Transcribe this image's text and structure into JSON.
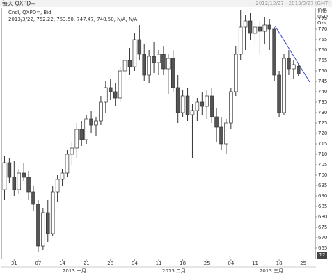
{
  "chart_data": {
    "type": "candlestick",
    "title": "每天 QXPD=",
    "subtitle": "2012/12/27 - 2013/3/27 (GMT)",
    "legend_lines": [
      "Cndl, QXPD=, Bid",
      "2013/3/22, 752.22, 753.50, 747.47, 748.50, N/A, N/A"
    ],
    "y_axis_labels": [
      "价格",
      "USD",
      "Ozs"
    ],
    "corner_label": "12",
    "categories": [
      null,
      null,
      "31",
      null,
      null,
      null,
      null,
      "07",
      null,
      null,
      null,
      null,
      "14",
      null,
      null,
      null,
      null,
      "21",
      null,
      null,
      null,
      null,
      "28",
      null,
      null,
      null,
      null,
      "04",
      null,
      null,
      null,
      null,
      "11",
      null,
      null,
      null,
      null,
      "18",
      null,
      null,
      null,
      null,
      "25",
      null,
      null,
      null,
      null,
      "04",
      null,
      null,
      null,
      null,
      "11",
      null,
      null,
      null,
      null,
      "18",
      null,
      null,
      null,
      null,
      "25",
      null,
      null
    ],
    "months": [
      "2013 一月",
      "2013 二月",
      "2013 三月"
    ],
    "open": [
      693,
      706,
      699,
      693,
      701,
      699,
      692,
      686,
      666,
      682,
      672,
      692,
      698,
      701,
      710,
      713,
      722,
      717,
      727,
      724,
      726,
      735,
      742,
      740,
      737,
      750,
      755,
      752,
      765,
      758,
      748,
      757,
      754,
      758,
      751,
      756,
      742,
      730,
      738,
      729,
      731,
      735,
      733,
      738,
      728,
      723,
      715,
      725,
      740,
      758,
      771,
      774,
      768,
      771,
      769,
      772,
      770,
      748,
      730,
      756,
      751,
      752.22,
      null,
      null,
      null
    ],
    "high": [
      709,
      708,
      707,
      703,
      706,
      702,
      695,
      688,
      684,
      688,
      695,
      700,
      703,
      712,
      716,
      725,
      726,
      729,
      731,
      728,
      738,
      745,
      746,
      744,
      752,
      758,
      761,
      768,
      772,
      763,
      760,
      764,
      760,
      762,
      758,
      760,
      748,
      741,
      742,
      734,
      737,
      740,
      741,
      742,
      732,
      728,
      727,
      742,
      762,
      779,
      777,
      778,
      775,
      774,
      776,
      775,
      771,
      750,
      758,
      760,
      755,
      753.5,
      null,
      null,
      null
    ],
    "low": [
      688,
      696,
      690,
      691,
      697,
      688,
      683,
      663,
      664,
      668,
      671,
      687,
      695,
      699,
      705,
      708,
      714,
      715,
      720,
      719,
      724,
      730,
      736,
      733,
      735,
      745,
      748,
      750,
      755,
      745,
      744,
      749,
      748,
      748,
      739,
      740,
      725,
      728,
      726,
      708,
      726,
      729,
      727,
      725,
      716,
      712,
      710,
      722,
      738,
      755,
      760,
      765,
      762,
      758,
      763,
      760,
      745,
      728,
      729,
      748,
      746,
      747.47,
      null,
      null,
      null
    ],
    "close": [
      706,
      699,
      693,
      701,
      699,
      692,
      686,
      666,
      682,
      672,
      692,
      698,
      701,
      710,
      713,
      722,
      717,
      727,
      724,
      726,
      735,
      742,
      740,
      737,
      750,
      755,
      752,
      765,
      758,
      748,
      757,
      754,
      758,
      751,
      756,
      742,
      730,
      738,
      729,
      731,
      735,
      733,
      738,
      728,
      723,
      715,
      725,
      740,
      758,
      771,
      774,
      768,
      771,
      769,
      772,
      770,
      748,
      730,
      756,
      751,
      753,
      748.5,
      null,
      null,
      null
    ],
    "ylim": [
      660,
      780
    ],
    "yticks": [
      665,
      670,
      675,
      680,
      685,
      690,
      695,
      700,
      705,
      710,
      715,
      720,
      725,
      730,
      735,
      740,
      745,
      750,
      755,
      760,
      765,
      770,
      775
    ],
    "up_color": "#ffffff",
    "down_color": "#555555",
    "wick_color": "#333333"
  }
}
